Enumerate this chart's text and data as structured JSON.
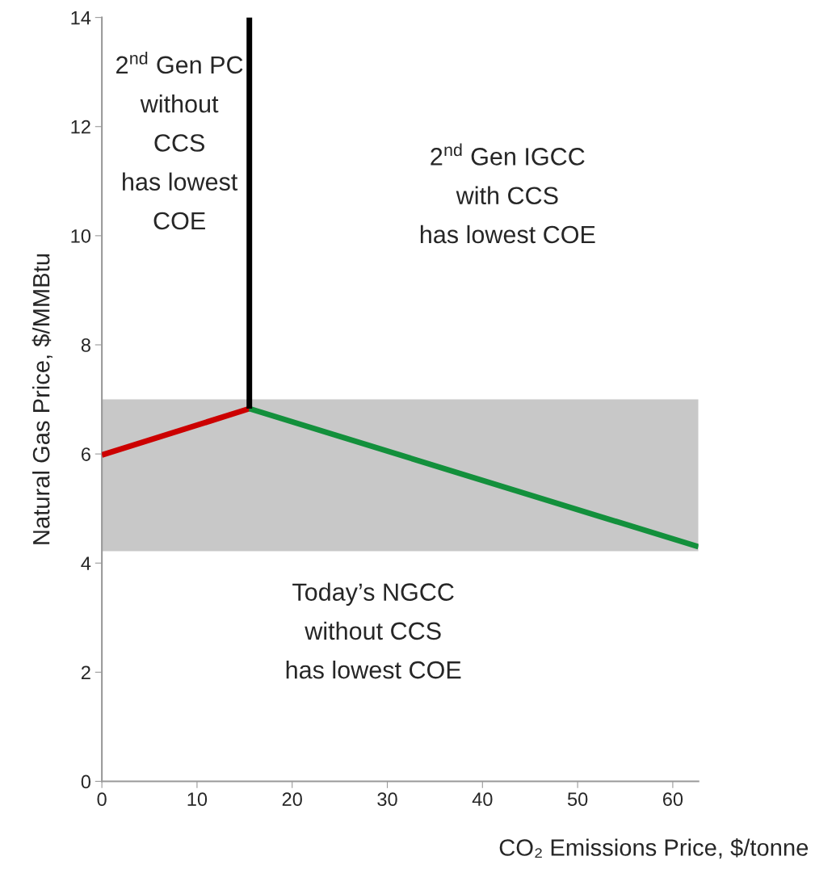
{
  "chart_data": {
    "type": "line",
    "xlabel": "CO₂ Emissions Price, $/tonne",
    "ylabel": "Natural Gas Price, $/MMBtu",
    "series": [
      {
        "color": "#cc0000",
        "x": [
          0,
          15.5
        ],
        "values": [
          5.98,
          6.83
        ]
      },
      {
        "color": "#13903c",
        "x": [
          15.5,
          62.7
        ],
        "values": [
          6.83,
          4.3
        ]
      },
      {
        "color": "#000000",
        "x": [
          15.5,
          15.5
        ],
        "values": [
          6.83,
          14
        ]
      }
    ],
    "bands": [
      {
        "axis": "y",
        "from": 4.22,
        "to": 7.0,
        "color": "#c8c8c8"
      }
    ],
    "annotations": [
      "2$^{nd}$ Gen PC",
      "without",
      "CCS",
      "has lowest",
      "COE",
      "2$^{nd}$ Gen IGCC",
      "with CCS",
      "has lowest COE",
      "Today’s NGCC",
      "without CCS",
      "has lowest COE"
    ],
    "xlim": [
      0,
      62.7
    ],
    "ylim": [
      0,
      14
    ],
    "xticks": [
      0,
      10,
      20,
      30,
      40,
      50,
      60
    ],
    "yticks": [
      0,
      2,
      4,
      6,
      8,
      10,
      12,
      14
    ],
    "grid": false,
    "legend": false,
    "marker": "none",
    "line_style": "solid"
  }
}
